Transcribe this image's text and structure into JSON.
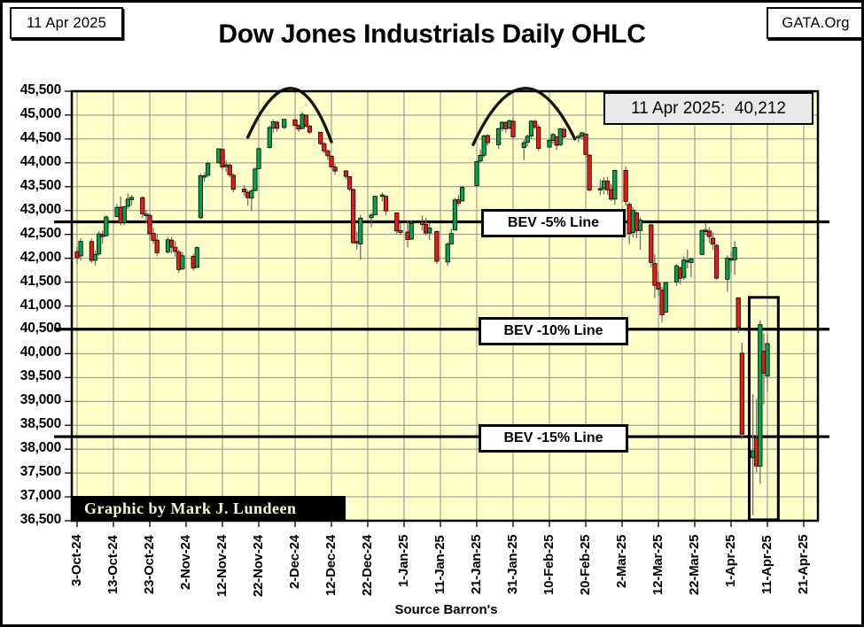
{
  "header": {
    "date_box": "11 Apr 2025",
    "title": "Dow Jones Industrials Daily OHLC",
    "org_box": "GATA.Org"
  },
  "callout": {
    "text": "11 Apr 2025:  40,212"
  },
  "footer": {
    "credit": "Graphic by Mark J. Lundeen",
    "source": "Source Barron's"
  },
  "chart_data": {
    "type": "ohlc-candlestick",
    "title": "Dow Jones Industrials Daily OHLC",
    "ylim": [
      36500,
      45500
    ],
    "y_tick_step": 500,
    "y_tick_labels": [
      "45,500",
      "45,000",
      "44,500",
      "44,000",
      "43,500",
      "43,000",
      "42,500",
      "42,000",
      "41,500",
      "41,000",
      "40,500",
      "40,000",
      "39,500",
      "39,000",
      "38,500",
      "38,000",
      "37,500",
      "37,000",
      "36,500"
    ],
    "x_tick_labels": [
      "3-Oct-24",
      "13-Oct-24",
      "23-Oct-24",
      "2-Nov-24",
      "12-Nov-24",
      "22-Nov-24",
      "2-Dec-24",
      "12-Dec-24",
      "22-Dec-24",
      "1-Jan-25",
      "11-Jan-25",
      "21-Jan-25",
      "31-Jan-25",
      "10-Feb-25",
      "20-Feb-25",
      "2-Mar-25",
      "12-Mar-25",
      "22-Mar-25",
      "1-Apr-25",
      "11-Apr-25",
      "21-Apr-25"
    ],
    "grid": true,
    "legend": "none",
    "plot_bg": "#ffffc9",
    "grid_color": "#8f8f8f",
    "up_color": "#00a44c",
    "down_color": "#ee1515",
    "wick_color": "#6f6f6f",
    "latest": {
      "date": "11 Apr 2025",
      "close": 40212
    },
    "bev_lines": [
      {
        "label": "BEV -5% Line",
        "value": 42763
      },
      {
        "label": "BEV -10% Line",
        "value": 40513
      },
      {
        "label": "BEV -15% Line",
        "value": 38262
      }
    ],
    "domes": [
      {
        "x0": "19-Nov-24",
        "y0": 44535,
        "xa": "1-Dec-24",
        "ya": 45560,
        "x1": "12-Dec-24",
        "y1": 44440
      },
      {
        "x0": "20-Jan-25",
        "y0": 44380,
        "xa": "3-Feb-25",
        "ya": 45560,
        "x1": "17-Feb-25",
        "y1": 44500
      }
    ],
    "highlight_box": {
      "x0": "6-Apr-25",
      "x1": "14-Apr-25",
      "top": 41180,
      "bottom": 36520
    },
    "ohlc_columns": [
      "date",
      "open",
      "high",
      "low",
      "close"
    ],
    "ohlc": [
      [
        "3-Oct-24",
        42137,
        42235,
        41876,
        42011
      ],
      [
        "4-Oct-24",
        42050,
        42420,
        41950,
        42353
      ],
      [
        "7-Oct-24",
        42350,
        42410,
        41900,
        41954
      ],
      [
        "8-Oct-24",
        41960,
        42170,
        41850,
        42080
      ],
      [
        "9-Oct-24",
        42090,
        42565,
        42050,
        42512
      ],
      [
        "10-Oct-24",
        42500,
        42580,
        42300,
        42454
      ],
      [
        "11-Oct-24",
        42470,
        42900,
        42450,
        42864
      ],
      [
        "14-Oct-24",
        42870,
        43140,
        42860,
        43065
      ],
      [
        "15-Oct-24",
        43070,
        43290,
        42690,
        42740
      ],
      [
        "16-Oct-24",
        42750,
        43100,
        42700,
        43078
      ],
      [
        "17-Oct-24",
        43090,
        43360,
        43030,
        43239
      ],
      [
        "18-Oct-24",
        43230,
        43330,
        43100,
        43275
      ],
      [
        "21-Oct-24",
        43270,
        43300,
        42850,
        42931
      ],
      [
        "22-Oct-24",
        42920,
        43010,
        42740,
        42924
      ],
      [
        "23-Oct-24",
        42900,
        42940,
        42370,
        42515
      ],
      [
        "24-Oct-24",
        42520,
        42640,
        42300,
        42374
      ],
      [
        "25-Oct-24",
        42380,
        42510,
        42040,
        42114
      ],
      [
        "28-Oct-24",
        42130,
        42440,
        42100,
        42387
      ],
      [
        "29-Oct-24",
        42380,
        42450,
        42100,
        42233
      ],
      [
        "30-Oct-24",
        42230,
        42360,
        42030,
        42142
      ],
      [
        "31-Oct-24",
        42130,
        42180,
        41700,
        41763
      ],
      [
        "1-Nov-24",
        41780,
        42130,
        41750,
        42052
      ],
      [
        "4-Nov-24",
        42040,
        42090,
        41740,
        41795
      ],
      [
        "5-Nov-24",
        41810,
        42250,
        41800,
        42222
      ],
      [
        "6-Nov-24",
        42850,
        43780,
        42820,
        43730
      ],
      [
        "7-Nov-24",
        43720,
        43800,
        43600,
        43729
      ],
      [
        "8-Nov-24",
        43740,
        44030,
        43700,
        43989
      ],
      [
        "11-Nov-24",
        44000,
        44300,
        43980,
        44294
      ],
      [
        "12-Nov-24",
        44280,
        44300,
        43870,
        43911
      ],
      [
        "13-Nov-24",
        43920,
        44050,
        43810,
        43958
      ],
      [
        "14-Nov-24",
        43950,
        44000,
        43700,
        43751
      ],
      [
        "15-Nov-24",
        43740,
        43780,
        43380,
        43445
      ],
      [
        "18-Nov-24",
        43450,
        43530,
        43300,
        43390
      ],
      [
        "19-Nov-24",
        43380,
        43430,
        43100,
        43269
      ],
      [
        "20-Nov-24",
        43260,
        43460,
        43000,
        43408
      ],
      [
        "21-Nov-24",
        43420,
        43900,
        43400,
        43870
      ],
      [
        "22-Nov-24",
        43880,
        44320,
        43860,
        44297
      ],
      [
        "25-Nov-24",
        44320,
        44780,
        44300,
        44737
      ],
      [
        "26-Nov-24",
        44730,
        44910,
        44620,
        44860
      ],
      [
        "27-Nov-24",
        44850,
        44880,
        44650,
        44722
      ],
      [
        "29-Nov-24",
        44740,
        44920,
        44710,
        44911
      ],
      [
        "2-Dec-24",
        44900,
        44930,
        44710,
        44782
      ],
      [
        "3-Dec-24",
        44780,
        44810,
        44650,
        44706
      ],
      [
        "4-Dec-24",
        44720,
        45070,
        44700,
        45014
      ],
      [
        "5-Dec-24",
        45000,
        45010,
        44740,
        44766
      ],
      [
        "6-Dec-24",
        44770,
        44800,
        44600,
        44643
      ],
      [
        "9-Dec-24",
        44640,
        44650,
        44370,
        44402
      ],
      [
        "10-Dec-24",
        44400,
        44440,
        44190,
        44248
      ],
      [
        "11-Dec-24",
        44250,
        44290,
        44060,
        44149
      ],
      [
        "12-Dec-24",
        44140,
        44160,
        43880,
        43914
      ],
      [
        "13-Dec-24",
        43910,
        43980,
        43750,
        43828
      ],
      [
        "16-Dec-24",
        43830,
        43850,
        43650,
        43717
      ],
      [
        "17-Dec-24",
        43710,
        43720,
        43400,
        43450
      ],
      [
        "18-Dec-24",
        43440,
        43460,
        42300,
        42327
      ],
      [
        "19-Dec-24",
        42350,
        42560,
        42180,
        42342
      ],
      [
        "20-Dec-24",
        42300,
        42900,
        41970,
        42840
      ],
      [
        "23-Dec-24",
        42850,
        42950,
        42650,
        42906
      ],
      [
        "24-Dec-24",
        42910,
        43310,
        42900,
        43297
      ],
      [
        "26-Dec-24",
        43300,
        43380,
        43190,
        43326
      ],
      [
        "27-Dec-24",
        43300,
        43320,
        42900,
        42992
      ],
      [
        "30-Dec-24",
        42950,
        42960,
        42500,
        42573
      ],
      [
        "31-Dec-24",
        42580,
        42730,
        42480,
        42544
      ],
      [
        "2-Jan-25",
        42550,
        42800,
        42230,
        42392
      ],
      [
        "3-Jan-25",
        42400,
        42790,
        42380,
        42732
      ],
      [
        "6-Jan-25",
        42760,
        42900,
        42580,
        42707
      ],
      [
        "7-Jan-25",
        42710,
        42850,
        42480,
        42528
      ],
      [
        "8-Jan-25",
        42530,
        42740,
        42380,
        42635
      ],
      [
        "10-Jan-25",
        42560,
        42580,
        41880,
        41938
      ],
      [
        "13-Jan-25",
        41920,
        42330,
        41840,
        42297
      ],
      [
        "14-Jan-25",
        42300,
        42620,
        42290,
        42518
      ],
      [
        "15-Jan-25",
        42590,
        43270,
        42580,
        43222
      ],
      [
        "16-Jan-25",
        43230,
        43330,
        43090,
        43153
      ],
      [
        "17-Jan-25",
        43200,
        43520,
        43190,
        43488
      ],
      [
        "21-Jan-25",
        43520,
        44050,
        43510,
        44026
      ],
      [
        "22-Jan-25",
        44040,
        44280,
        43990,
        44157
      ],
      [
        "23-Jan-25",
        44160,
        44590,
        44110,
        44565
      ],
      [
        "24-Jan-25",
        44570,
        44600,
        44360,
        44424
      ],
      [
        "27-Jan-25",
        44380,
        44740,
        44290,
        44714
      ],
      [
        "28-Jan-25",
        44720,
        44870,
        44660,
        44850
      ],
      [
        "29-Jan-25",
        44840,
        44870,
        44630,
        44713
      ],
      [
        "30-Jan-25",
        44730,
        44910,
        44700,
        44882
      ],
      [
        "31-Jan-25",
        44870,
        44940,
        44500,
        44545
      ],
      [
        "3-Feb-25",
        44320,
        44480,
        44060,
        44421
      ],
      [
        "4-Feb-25",
        44430,
        44590,
        44350,
        44556
      ],
      [
        "5-Feb-25",
        44560,
        44890,
        44500,
        44873
      ],
      [
        "6-Feb-25",
        44870,
        44900,
        44700,
        44748
      ],
      [
        "7-Feb-25",
        44750,
        44800,
        44250,
        44303
      ],
      [
        "10-Feb-25",
        44330,
        44510,
        44300,
        44470
      ],
      [
        "11-Feb-25",
        44470,
        44620,
        44400,
        44594
      ],
      [
        "12-Feb-25",
        44540,
        44570,
        44270,
        44369
      ],
      [
        "13-Feb-25",
        44380,
        44730,
        44350,
        44711
      ],
      [
        "14-Feb-25",
        44700,
        44740,
        44490,
        44546
      ],
      [
        "18-Feb-25",
        44550,
        44600,
        44430,
        44556
      ],
      [
        "19-Feb-25",
        44560,
        44650,
        44480,
        44627
      ],
      [
        "20-Feb-25",
        44600,
        44610,
        44110,
        44177
      ],
      [
        "21-Feb-25",
        44160,
        44180,
        43400,
        43428
      ],
      [
        "24-Feb-25",
        43440,
        43650,
        43320,
        43461
      ],
      [
        "25-Feb-25",
        43460,
        43700,
        43340,
        43621
      ],
      [
        "26-Feb-25",
        43620,
        43710,
        43330,
        43433
      ],
      [
        "27-Feb-25",
        43440,
        43560,
        43200,
        43239
      ],
      [
        "28-Feb-25",
        43240,
        43860,
        43120,
        43841
      ],
      [
        "3-Mar-25",
        43840,
        43920,
        43100,
        43191
      ],
      [
        "4-Mar-25",
        43130,
        43180,
        42300,
        42521
      ],
      [
        "5-Mar-25",
        42540,
        43070,
        42430,
        43007
      ],
      [
        "6-Mar-25",
        42950,
        42980,
        42420,
        42579
      ],
      [
        "7-Mar-25",
        42580,
        42860,
        42180,
        42802
      ],
      [
        "10-Mar-25",
        42700,
        42720,
        41810,
        41912
      ],
      [
        "11-Mar-25",
        41890,
        42080,
        41170,
        41433
      ],
      [
        "12-Mar-25",
        41480,
        41730,
        41200,
        41351
      ],
      [
        "13-Mar-25",
        41330,
        41400,
        40660,
        40814
      ],
      [
        "14-Mar-25",
        40870,
        41510,
        40860,
        41488
      ],
      [
        "17-Mar-25",
        41500,
        41880,
        41420,
        41842
      ],
      [
        "18-Mar-25",
        41800,
        41830,
        41450,
        41581
      ],
      [
        "19-Mar-25",
        41600,
        42040,
        41550,
        41964
      ],
      [
        "20-Mar-25",
        41950,
        42180,
        41790,
        41953
      ],
      [
        "21-Mar-25",
        41910,
        42020,
        41600,
        41985
      ],
      [
        "24-Mar-25",
        42080,
        42600,
        42060,
        42583
      ],
      [
        "25-Mar-25",
        42590,
        42740,
        42480,
        42587
      ],
      [
        "26-Mar-25",
        42570,
        42650,
        42330,
        42455
      ],
      [
        "27-Mar-25",
        42420,
        42540,
        42180,
        42299
      ],
      [
        "28-Mar-25",
        42270,
        42300,
        41540,
        41584
      ],
      [
        "31-Mar-25",
        41560,
        42060,
        41300,
        42002
      ],
      [
        "1-Apr-25",
        41990,
        42140,
        41700,
        41990
      ],
      [
        "2-Apr-25",
        41970,
        42360,
        41650,
        42225
      ],
      [
        "3-Apr-25",
        41170,
        41190,
        40440,
        40546
      ],
      [
        "4-Apr-25",
        40010,
        40230,
        38210,
        38315
      ],
      [
        "7-Apr-25",
        37820,
        39150,
        36611,
        37966
      ],
      [
        "8-Apr-25",
        38240,
        39050,
        37520,
        37646
      ],
      [
        "9-Apr-25",
        37645,
        40704,
        37276,
        40608
      ],
      [
        "10-Apr-25",
        40050,
        40424,
        38938,
        39593
      ],
      [
        "11-Apr-25",
        39530,
        40414,
        39211,
        40212
      ]
    ]
  }
}
